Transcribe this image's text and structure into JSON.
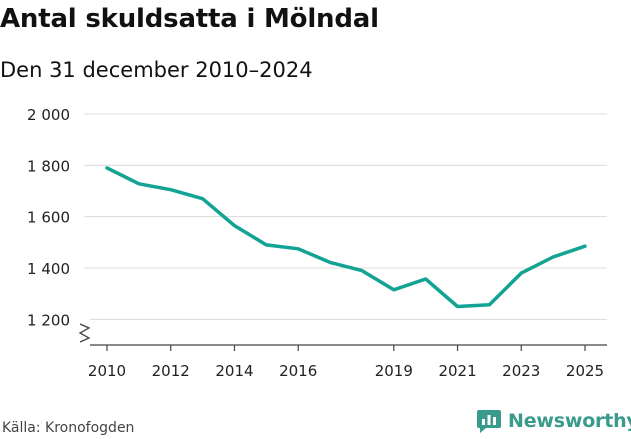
{
  "title": "Antal skuldsatta i Mölndal",
  "subtitle": "Den 31 december 2010–2024",
  "source": "Källa: Kronofogden",
  "brand": {
    "name": "Newsworthy",
    "color": "#3a9a8c"
  },
  "chart_data": {
    "type": "line",
    "title": "Antal skuldsatta i Mölndal",
    "subtitle": "Den 31 december 2010–2024",
    "xlabel": "",
    "ylabel": "",
    "ylim": [
      1100,
      2000
    ],
    "xlim": [
      2010,
      2025
    ],
    "y_ticks": [
      1200,
      1400,
      1600,
      1800,
      2000
    ],
    "y_tick_labels": [
      "1 200",
      "1 400",
      "1 600",
      "1 800",
      "2 000"
    ],
    "x_ticks": [
      2010,
      2012,
      2014,
      2016,
      2019,
      2021,
      2023,
      2025
    ],
    "x_tick_labels": [
      "2010",
      "2012",
      "2014",
      "2016",
      "2019",
      "2021",
      "2023",
      "2025"
    ],
    "grid": true,
    "axis_break": true,
    "series": [
      {
        "name": "Antal skuldsatta",
        "color": "#12a394",
        "x": [
          2010,
          2011,
          2012,
          2013,
          2014,
          2015,
          2016,
          2017,
          2018,
          2019,
          2020,
          2021,
          2022,
          2023,
          2024,
          2025
        ],
        "values": [
          1790,
          1728,
          1705,
          1670,
          1565,
          1490,
          1475,
          1422,
          1390,
          1315,
          1357,
          1250,
          1257,
          1380,
          1443,
          1485
        ]
      }
    ]
  }
}
